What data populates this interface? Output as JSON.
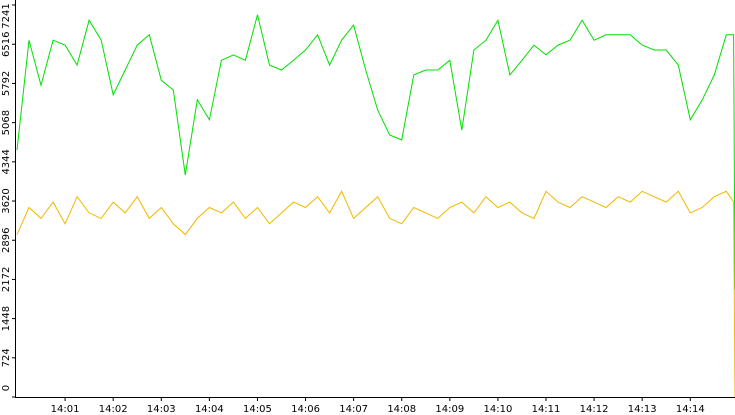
{
  "chart_data": {
    "type": "line",
    "x": [
      0,
      0.25,
      0.5,
      0.75,
      1,
      1.25,
      1.5,
      1.75,
      2,
      2.25,
      2.5,
      2.75,
      3,
      3.25,
      3.5,
      3.75,
      4,
      4.25,
      4.5,
      4.75,
      5,
      5.25,
      5.5,
      5.75,
      6,
      6.25,
      6.5,
      6.75,
      7,
      7.25,
      7.5,
      7.75,
      8,
      8.25,
      8.5,
      8.75,
      9,
      9.25,
      9.5,
      9.75,
      10,
      10.25,
      10.5,
      10.75,
      11,
      11.25,
      11.5,
      11.75,
      12,
      12.25,
      12.5,
      12.75,
      13,
      13.25,
      13.5,
      13.75,
      14,
      14.25,
      14.5,
      14.75,
      14.9,
      14.93
    ],
    "series": [
      {
        "color": "#00e000",
        "values": [
          4560,
          6590,
          5760,
          6590,
          6500,
          6130,
          6960,
          6590,
          5580,
          6040,
          6500,
          6690,
          5850,
          5670,
          4100,
          5490,
          5120,
          6220,
          6320,
          6220,
          7060,
          6130,
          6040,
          6220,
          6410,
          6690,
          6130,
          6590,
          6870,
          6040,
          5300,
          4840,
          4750,
          5950,
          6040,
          6040,
          6220,
          4930,
          6410,
          6590,
          6960,
          5950,
          6220,
          6500,
          6320,
          6500,
          6590,
          6960,
          6590,
          6690,
          6690,
          6690,
          6500,
          6410,
          6410,
          6130,
          5120,
          5490,
          5950,
          6690,
          6690,
          1980
        ]
      },
      {
        "color": "#f0b800",
        "values": [
          3000,
          3500,
          3300,
          3600,
          3200,
          3700,
          3400,
          3300,
          3600,
          3400,
          3700,
          3300,
          3500,
          3200,
          3000,
          3300,
          3500,
          3400,
          3600,
          3300,
          3500,
          3200,
          3400,
          3600,
          3500,
          3700,
          3400,
          3800,
          3300,
          3500,
          3700,
          3300,
          3200,
          3500,
          3400,
          3300,
          3500,
          3600,
          3400,
          3700,
          3500,
          3600,
          3400,
          3300,
          3800,
          3600,
          3500,
          3700,
          3600,
          3500,
          3700,
          3600,
          3800,
          3700,
          3600,
          3800,
          3400,
          3500,
          3700,
          3800,
          3600,
          0
        ]
      }
    ],
    "xlim": [
      0,
      14.93
    ],
    "xticks": [
      {
        "value": 1,
        "label": "14:01"
      },
      {
        "value": 2,
        "label": "14:02"
      },
      {
        "value": 3,
        "label": "14:03"
      },
      {
        "value": 4,
        "label": "14:04"
      },
      {
        "value": 5,
        "label": "14:05"
      },
      {
        "value": 6,
        "label": "14:06"
      },
      {
        "value": 7,
        "label": "14:07"
      },
      {
        "value": 8,
        "label": "14:08"
      },
      {
        "value": 9,
        "label": "14:09"
      },
      {
        "value": 10,
        "label": "14:10"
      },
      {
        "value": 11,
        "label": "14:11"
      },
      {
        "value": 12,
        "label": "14:12"
      },
      {
        "value": 13,
        "label": "14:13"
      },
      {
        "value": 14,
        "label": "14:14"
      }
    ],
    "ylim": [
      0,
      7241
    ],
    "yticks": [
      0,
      724,
      1448,
      2172,
      2896,
      3620,
      4344,
      5068,
      5792,
      6516,
      7241
    ]
  }
}
